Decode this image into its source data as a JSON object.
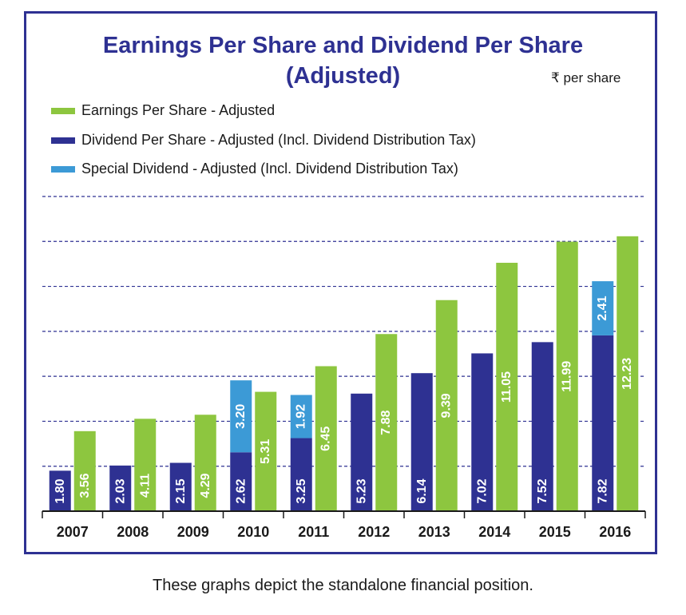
{
  "chart_data": {
    "type": "bar",
    "title": "Earnings Per Share and Dividend Per Share",
    "subtitle": "(Adjusted)",
    "unit_label": "₹ per share",
    "categories": [
      "2007",
      "2008",
      "2009",
      "2010",
      "2011",
      "2012",
      "2013",
      "2014",
      "2015",
      "2016"
    ],
    "series": [
      {
        "name": "Earnings Per Share - Adjusted",
        "color": "#8dc63f",
        "values": [
          3.56,
          4.11,
          4.29,
          5.31,
          6.45,
          7.88,
          9.39,
          11.05,
          11.99,
          12.23
        ]
      },
      {
        "name": "Dividend Per Share - Adjusted (Incl. Dividend Distribution Tax)",
        "color": "#2e3192",
        "values": [
          1.8,
          2.03,
          2.15,
          2.62,
          3.25,
          5.23,
          6.14,
          7.02,
          7.52,
          7.82
        ]
      },
      {
        "name": "Special Dividend - Adjusted (Incl. Dividend Distribution Tax)",
        "color": "#3c9ad6",
        "values": [
          null,
          null,
          null,
          3.2,
          1.92,
          null,
          null,
          null,
          null,
          2.41
        ]
      }
    ],
    "data_labels": {
      "eps": [
        "3.56",
        "4.11",
        "4.29",
        "5.31",
        "6.45",
        "7.88",
        "9.39",
        "11.05",
        "11.99",
        "12.23"
      ],
      "dps": [
        "1.80",
        "2.03",
        "2.15",
        "2.62",
        "3.25",
        "5.23",
        "6.14",
        "7.02",
        "7.52",
        "7.82"
      ],
      "special": [
        "",
        "",
        "",
        "3.20",
        "1.92",
        "",
        "",
        "",
        "",
        "2.41"
      ]
    },
    "stacked_series": [
      "Dividend Per Share - Adjusted (Incl. Dividend Distribution Tax)",
      "Special Dividend - Adjusted (Incl. Dividend Distribution Tax)"
    ],
    "ylim": [
      0,
      14
    ],
    "grid": true,
    "legend_position": "top-left"
  },
  "caption": "These graphs depict the standalone financial position."
}
